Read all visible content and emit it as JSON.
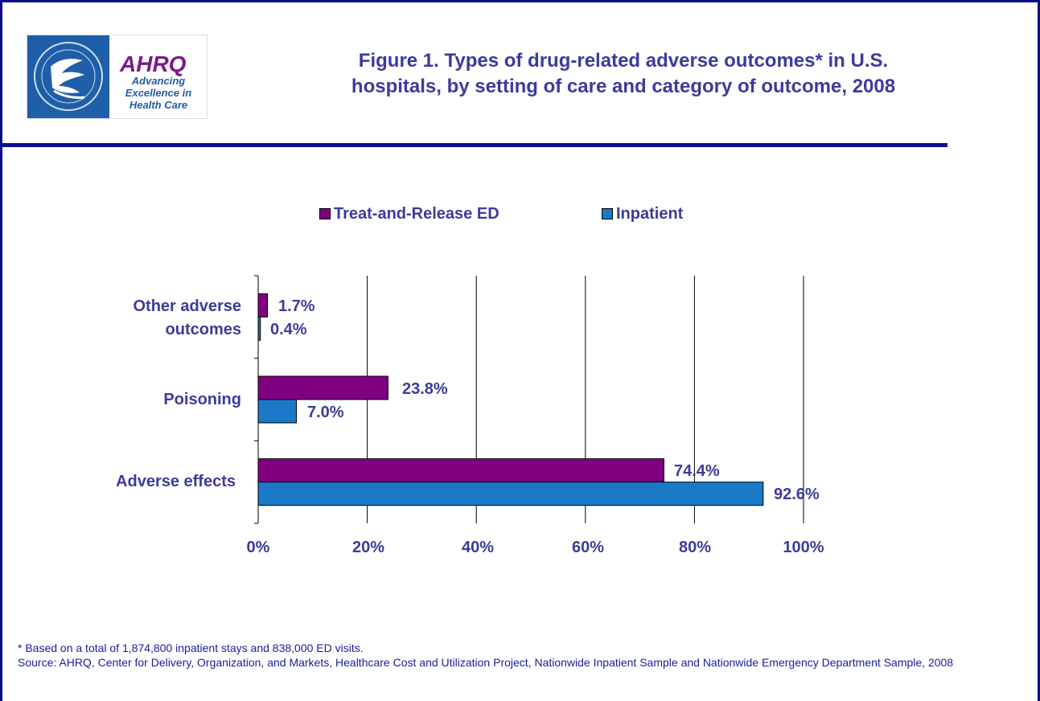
{
  "header": {
    "title_line1": "Figure 1. Types of drug-related adverse outcomes* in U.S.",
    "title_line2": "hospitals, by setting of care and category of outcome, 2008",
    "logo": {
      "brand": "AHRQ",
      "tagline_line1": "Advancing",
      "tagline_line2": "Excellence in",
      "tagline_line3": "Health Care",
      "seal_icon": "hhs-eagle-seal-icon"
    }
  },
  "chart_data": {
    "type": "bar",
    "orientation": "horizontal",
    "categories": [
      "Other adverse outcomes",
      "Poisoning",
      "Adverse effects"
    ],
    "category_labels": [
      [
        "Other adverse",
        "outcomes"
      ],
      [
        "Poisoning"
      ],
      [
        "Adverse effects"
      ]
    ],
    "series": [
      {
        "name": "Treat-and-Release ED",
        "color": "#800080",
        "values": [
          1.7,
          23.8,
          74.4
        ],
        "labels": [
          "1.7%",
          "23.8%",
          "74.4%"
        ]
      },
      {
        "name": "Inpatient",
        "color": "#1a7ac8",
        "values": [
          0.4,
          7.0,
          92.6
        ],
        "labels": [
          "0.4%",
          "7.0%",
          "92.6%"
        ]
      }
    ],
    "xlim": [
      0,
      100
    ],
    "xticks": [
      0,
      20,
      40,
      60,
      80,
      100
    ],
    "xtick_labels": [
      "0%",
      "20%",
      "40%",
      "60%",
      "80%",
      "100%"
    ],
    "grid": "vertical",
    "legend": "top"
  },
  "footnote": {
    "line1": "* Based on a total of 1,874,800 inpatient stays and 838,000 ED visits.",
    "line2": "Source: AHRQ, Center for Delivery, Organization, and Markets, Healthcare Cost and Utilization Project, Nationwide Inpatient Sample and Nationwide Emergency Department Sample, 2008"
  }
}
